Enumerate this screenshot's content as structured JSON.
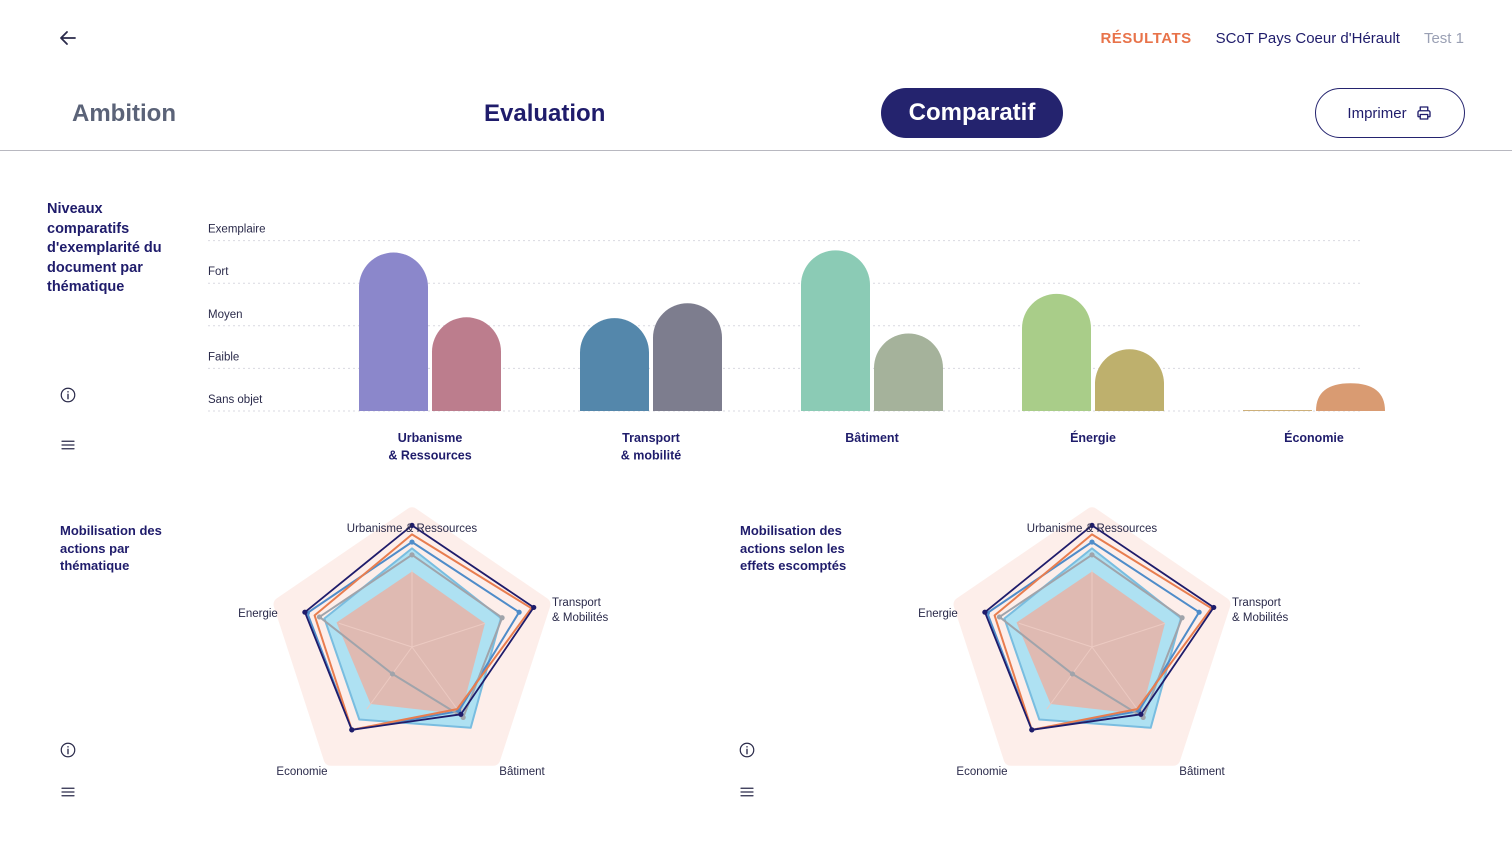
{
  "header": {
    "breadcrumbs": [
      "RÉSULTATS",
      "SCoT Pays Coeur d'Hérault",
      "Test 1"
    ],
    "tabs": [
      {
        "label": "Ambition",
        "active": false
      },
      {
        "label": "Evaluation",
        "active": false
      },
      {
        "label": "Comparatif",
        "active": true
      }
    ],
    "print_label": "Imprimer"
  },
  "colors": {
    "accent": "#e8734a",
    "navy": "#24236e"
  },
  "icons": {
    "back": "arrow-left-icon",
    "print": "printer-icon",
    "info": "info-icon",
    "menu": "menu-icon"
  },
  "sections": {
    "bar_title": "Niveaux comparatifs d'exemplarité du document par thématique",
    "radar1_title": "Mobilisation des actions par thématique",
    "radar2_title": "Mobilisation des actions selon les effets escomptés"
  },
  "chart_data": [
    {
      "type": "bar",
      "title": "",
      "levels": [
        "Sans objet",
        "Faible",
        "Moyen",
        "Fort",
        "Exemplaire"
      ],
      "ylim": [
        0,
        4
      ],
      "categories": [
        "Urbanisme\n& Ressources",
        "Transport\n& mobilité",
        "Bâtiment",
        "Énergie",
        "Économie"
      ],
      "series": [
        {
          "values": [
            3.72,
            2.18,
            3.77,
            2.75,
            0.02
          ],
          "colors": [
            "#8b87cb",
            "#5487ab",
            "#8bcbb5",
            "#a9cd89",
            "#cdb07a"
          ]
        },
        {
          "values": [
            2.2,
            2.53,
            1.82,
            1.45,
            0.65
          ],
          "colors": [
            "#bc7d8d",
            "#7d7d8e",
            "#a5b29b",
            "#beb06d",
            "#d99b72"
          ]
        }
      ]
    },
    {
      "type": "radar",
      "axes": [
        "Urbanisme & Ressources",
        "Transport\n& Mobilités",
        "Bâtiment",
        "Economie",
        "Energie"
      ],
      "max": 1,
      "series": [
        {
          "values": [
            0.96,
            1.0,
            1.0,
            1.0,
            1.0
          ],
          "fill": "#fdeeea",
          "stroke": "none"
        },
        {
          "values": [
            0.77,
            0.73,
            0.78,
            0.7,
            0.72
          ],
          "fill": "#aee1f2",
          "stroke": "#79bde0"
        },
        {
          "values": [
            0.59,
            0.6,
            0.65,
            0.55,
            0.62
          ],
          "fill": "#e3b6ac",
          "stroke": "none"
        },
        {
          "values": [
            0.82,
            0.88,
            0.62,
            0.8,
            0.86
          ],
          "fill": "none",
          "stroke": "#4f8cc9",
          "dots": true
        },
        {
          "values": [
            0.72,
            0.74,
            0.68,
            0.26,
            0.76
          ],
          "fill": "none",
          "stroke": "#a0a4ab",
          "dots": true
        },
        {
          "values": [
            0.88,
            0.98,
            0.6,
            0.8,
            0.8
          ],
          "fill": "none",
          "stroke": "#e87d4f"
        },
        {
          "values": [
            0.95,
            1.0,
            0.65,
            0.8,
            0.88
          ],
          "fill": "none",
          "stroke": "#1f1c6b",
          "dots": true
        }
      ]
    },
    {
      "type": "radar",
      "axes": [
        "Urbanisme & Ressources",
        "Transport\n& Mobilités",
        "Bâtiment",
        "Economie",
        "Energie"
      ],
      "max": 1,
      "series": [
        {
          "values": [
            0.96,
            1.0,
            1.0,
            1.0,
            1.0
          ],
          "fill": "#fdeeea",
          "stroke": "none"
        },
        {
          "values": [
            0.77,
            0.73,
            0.78,
            0.7,
            0.72
          ],
          "fill": "#aee1f2",
          "stroke": "#79bde0"
        },
        {
          "values": [
            0.59,
            0.6,
            0.65,
            0.55,
            0.62
          ],
          "fill": "#e3b6ac",
          "stroke": "none"
        },
        {
          "values": [
            0.82,
            0.88,
            0.62,
            0.8,
            0.86
          ],
          "fill": "none",
          "stroke": "#4f8cc9",
          "dots": true
        },
        {
          "values": [
            0.72,
            0.74,
            0.68,
            0.26,
            0.76
          ],
          "fill": "none",
          "stroke": "#a0a4ab",
          "dots": true
        },
        {
          "values": [
            0.88,
            0.98,
            0.6,
            0.8,
            0.8
          ],
          "fill": "none",
          "stroke": "#e87d4f"
        },
        {
          "values": [
            0.95,
            1.0,
            0.65,
            0.8,
            0.88
          ],
          "fill": "none",
          "stroke": "#1f1c6b",
          "dots": true
        }
      ]
    }
  ]
}
